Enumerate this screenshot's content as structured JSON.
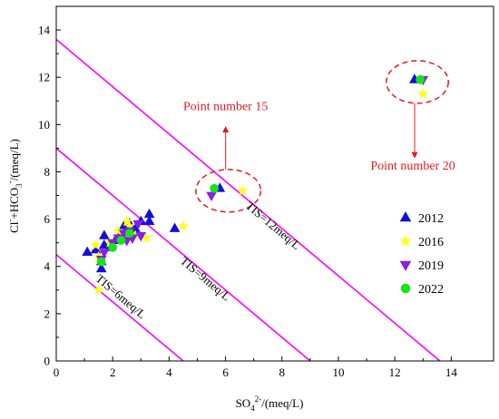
{
  "chart_data": {
    "type": "scatter",
    "title": "",
    "xlabel": "SO4²⁻/(meq/L)",
    "ylabel": "Cl⁻+HCO3⁻/(meq/L)",
    "xlabel_parts": {
      "base": "SO",
      "sub": "4",
      "sup": "2-",
      "unit": "/(meq/L)"
    },
    "ylabel_parts": {
      "pre": "Cl",
      "pre_sup": "-",
      "mid": "+HCO",
      "sub": "3",
      "sup": "-",
      "unit": "/(meq/L)"
    },
    "xlim": [
      0,
      15.5
    ],
    "ylim": [
      0,
      15
    ],
    "xticks": [
      0,
      2,
      4,
      6,
      8,
      10,
      12,
      14
    ],
    "yticks": [
      0,
      2,
      4,
      6,
      8,
      10,
      12,
      14
    ],
    "grid": false,
    "legend_position": "right",
    "series": [
      {
        "name": "2012",
        "marker": "triangle-up",
        "color": "#1010d8",
        "points": [
          [
            1.1,
            4.6
          ],
          [
            1.4,
            4.7
          ],
          [
            1.6,
            4.2
          ],
          [
            1.6,
            3.9
          ],
          [
            1.7,
            4.9
          ],
          [
            1.7,
            5.3
          ],
          [
            1.9,
            4.8
          ],
          [
            2.1,
            5.1
          ],
          [
            2.3,
            5.4
          ],
          [
            2.4,
            5.7
          ],
          [
            2.6,
            5.8
          ],
          [
            2.8,
            5.6
          ],
          [
            3.0,
            5.9
          ],
          [
            3.3,
            6.2
          ],
          [
            3.3,
            5.9
          ],
          [
            4.2,
            5.6
          ],
          [
            5.8,
            7.3
          ],
          [
            12.7,
            11.9
          ]
        ]
      },
      {
        "name": "2016",
        "marker": "star",
        "color": "#ffff1a",
        "points": [
          [
            1.4,
            4.9
          ],
          [
            1.5,
            3.0
          ],
          [
            1.5,
            4.4
          ],
          [
            1.9,
            5.0
          ],
          [
            2.2,
            5.5
          ],
          [
            2.4,
            5.2
          ],
          [
            2.5,
            5.9
          ],
          [
            2.6,
            5.7
          ],
          [
            2.8,
            5.3
          ],
          [
            3.2,
            5.2
          ],
          [
            4.5,
            5.7
          ],
          [
            6.6,
            7.2
          ],
          [
            13.0,
            11.3
          ]
        ]
      },
      {
        "name": "2019",
        "marker": "triangle-down",
        "color": "#8a1ee6",
        "points": [
          [
            1.6,
            4.3
          ],
          [
            1.7,
            4.6
          ],
          [
            2.0,
            5.0
          ],
          [
            2.2,
            5.2
          ],
          [
            2.4,
            5.4
          ],
          [
            2.5,
            5.1
          ],
          [
            2.6,
            5.5
          ],
          [
            2.7,
            5.2
          ],
          [
            2.9,
            5.8
          ],
          [
            3.0,
            5.3
          ],
          [
            5.5,
            7.0
          ],
          [
            13.0,
            11.9
          ]
        ]
      },
      {
        "name": "2022",
        "marker": "circle",
        "color": "#14e614",
        "points": [
          [
            1.6,
            4.2
          ],
          [
            2.0,
            4.8
          ],
          [
            2.3,
            5.1
          ],
          [
            2.6,
            5.4
          ],
          [
            5.6,
            7.3
          ],
          [
            12.9,
            11.9
          ]
        ]
      }
    ],
    "tis_lines": [
      {
        "label": "TIS=6meq/L",
        "intercept": 4.5
      },
      {
        "label": "TIS=9meq/L",
        "intercept": 9
      },
      {
        "label": "TIS=12meq/L",
        "intercept": 13.6
      }
    ],
    "tis_line_color": "#ff00ff",
    "annotations": [
      {
        "text": "Point number 15",
        "ellipse_center": [
          6.1,
          7.2
        ],
        "ellipse_radii": [
          1.15,
          0.9
        ]
      },
      {
        "text": "Point number 20",
        "ellipse_center": [
          12.8,
          11.8
        ],
        "ellipse_radii": [
          1.1,
          0.9
        ]
      }
    ],
    "annotation_color": "#e31a1c"
  }
}
